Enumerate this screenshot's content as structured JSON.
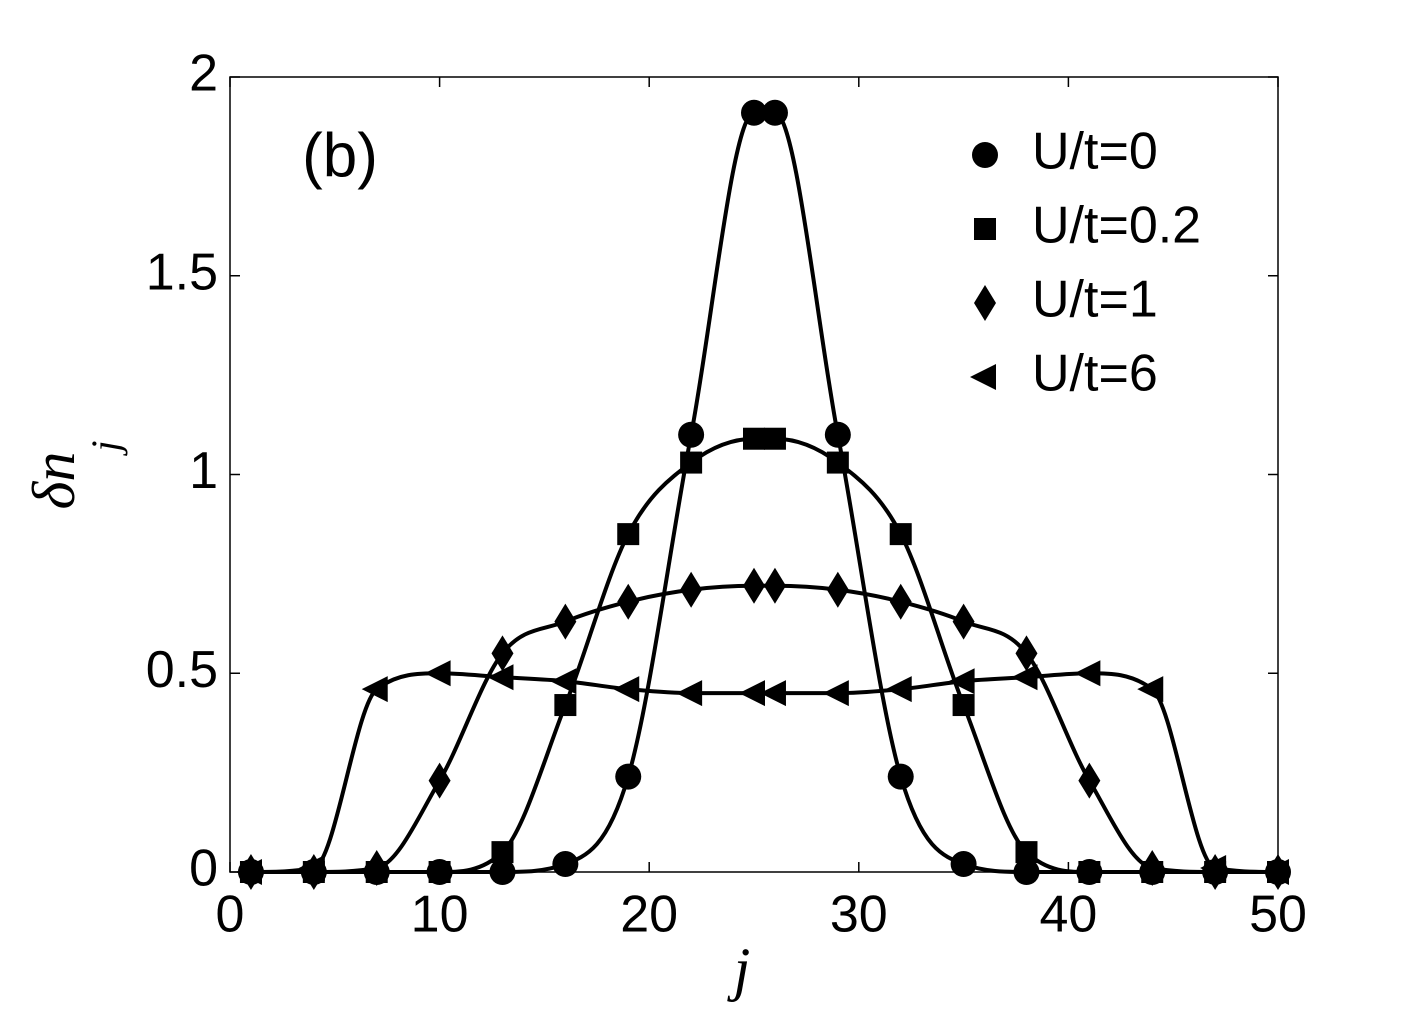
{
  "chart_data": {
    "type": "line",
    "annotation": "(b)",
    "xlabel": "j",
    "ylabel": "δn",
    "ylabel_sub": "j",
    "x": [
      1,
      4,
      7,
      10,
      13,
      16,
      19,
      22,
      25,
      26,
      29,
      32,
      35,
      38,
      41,
      44,
      47,
      50
    ],
    "series": [
      {
        "name": "U/t=0",
        "color": "#000000",
        "marker": "circle",
        "values": [
          0,
          0,
          0,
          0,
          0,
          0.02,
          0.24,
          1.1,
          1.91,
          1.91,
          1.1,
          0.24,
          0.02,
          0,
          0,
          0,
          0,
          0
        ]
      },
      {
        "name": "U/t=0.2",
        "color": "#000000",
        "marker": "square",
        "values": [
          0,
          0,
          0,
          0,
          0.05,
          0.42,
          0.85,
          1.03,
          1.09,
          1.09,
          1.03,
          0.85,
          0.42,
          0.05,
          0,
          0,
          0,
          0
        ]
      },
      {
        "name": "U/t=1",
        "color": "#000000",
        "marker": "diamond",
        "values": [
          0,
          0,
          0.01,
          0.23,
          0.55,
          0.63,
          0.68,
          0.71,
          0.72,
          0.72,
          0.71,
          0.68,
          0.63,
          0.55,
          0.23,
          0.01,
          0,
          0
        ]
      },
      {
        "name": "U/t=6",
        "color": "#000000",
        "marker": "triangle-left",
        "values": [
          0,
          0.01,
          0.46,
          0.5,
          0.49,
          0.48,
          0.46,
          0.45,
          0.45,
          0.45,
          0.45,
          0.46,
          0.48,
          0.49,
          0.5,
          0.46,
          0.01,
          0
        ]
      }
    ],
    "xlim": [
      0,
      50
    ],
    "xticks": [
      0,
      10,
      20,
      30,
      40,
      50
    ],
    "ylim": [
      0,
      2
    ],
    "yticks": [
      0,
      0.5,
      1,
      1.5,
      2
    ],
    "legend": "upper right",
    "grid": false
  }
}
